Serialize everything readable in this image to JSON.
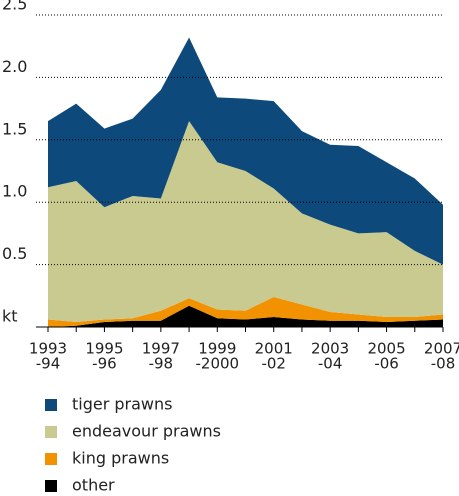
{
  "chart_data": {
    "type": "stacked-area",
    "categories": [
      [
        "1993",
        "-94"
      ],
      null,
      [
        "1995",
        "-96"
      ],
      null,
      [
        "1997",
        "-98"
      ],
      null,
      [
        "1999",
        "-2000"
      ],
      null,
      [
        "2001",
        "-02"
      ],
      null,
      [
        "2003",
        "-04"
      ],
      null,
      [
        "2005",
        "-06"
      ],
      null,
      [
        "2007",
        "-08"
      ]
    ],
    "series": [
      {
        "name": "tiger prawns",
        "color": "#0d4a7b",
        "values": [
          0.53,
          0.62,
          0.63,
          0.62,
          0.87,
          0.67,
          0.52,
          0.58,
          0.7,
          0.66,
          0.64,
          0.7,
          0.56,
          0.58,
          0.48
        ]
      },
      {
        "name": "endeavour prawns",
        "color": "#c9ca8f",
        "values": [
          1.06,
          1.13,
          0.9,
          0.98,
          0.9,
          1.42,
          1.18,
          1.12,
          0.87,
          0.73,
          0.7,
          0.65,
          0.68,
          0.53,
          0.4
        ]
      },
      {
        "name": "king prawns",
        "color": "#f39200",
        "values": [
          0.06,
          0.03,
          0.02,
          0.02,
          0.08,
          0.06,
          0.07,
          0.07,
          0.16,
          0.12,
          0.07,
          0.05,
          0.04,
          0.03,
          0.04
        ]
      },
      {
        "name": "other",
        "color": "#000000",
        "values": [
          0,
          0.01,
          0.04,
          0.05,
          0.05,
          0.17,
          0.07,
          0.06,
          0.08,
          0.06,
          0.05,
          0.05,
          0.04,
          0.05,
          0.06
        ]
      }
    ],
    "ylim": [
      0,
      2.5
    ],
    "yticks": [
      {
        "value": 0,
        "label": "kt"
      },
      0.5,
      {
        "value": 1,
        "label": "1.0"
      },
      1.5,
      {
        "value": 2,
        "label": "2.0"
      },
      2.5
    ],
    "grid": true
  }
}
